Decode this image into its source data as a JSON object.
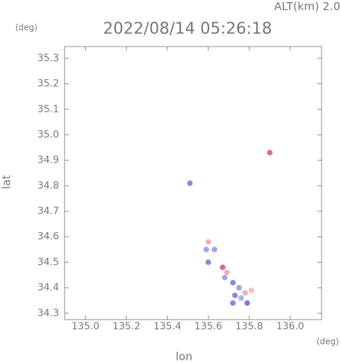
{
  "chart_data": {
    "type": "scatter",
    "title": "2022/08/14 05:26:18",
    "subtitle": "ALT(km) 2.0",
    "x_label": "lon",
    "y_label": "lat",
    "x_unit": "(deg)",
    "y_unit": "(deg)",
    "xlim": [
      134.898,
      136.153
    ],
    "ylim": [
      34.275,
      35.346
    ],
    "xticks": [
      {
        "value": 135,
        "label": "135.0"
      },
      135.2,
      135.4,
      135.6,
      135.8,
      {
        "value": 136,
        "label": "136.0"
      }
    ],
    "yticks": [
      34.3,
      34.4,
      34.5,
      34.6,
      34.7,
      34.8,
      34.9,
      {
        "value": 35,
        "label": "35.0"
      },
      35.1,
      35.2,
      35.3
    ],
    "x": [
      135.51,
      135.9,
      135.6,
      135.59,
      135.63,
      135.6,
      135.67,
      135.69,
      135.68,
      135.72,
      135.75,
      135.78,
      135.81,
      135.73,
      135.79,
      135.72,
      135.76
    ],
    "values": [
      34.81,
      34.93,
      34.58,
      34.55,
      34.55,
      34.5,
      34.48,
      34.46,
      34.44,
      34.42,
      34.4,
      34.38,
      34.39,
      34.37,
      34.34,
      34.34,
      34.36
    ],
    "colors": [
      "#6f74e6",
      "#e0506a",
      "#f2a0b0",
      "#8f94ee",
      "#8f94ee",
      "#6f74e6",
      "#e0506a",
      "#f2a0b0",
      "#8f94ee",
      "#6f74e6",
      "#8f94ee",
      "#f2a0b0",
      "#f2b0c0",
      "#6f74e6",
      "#5f64e0",
      "#6f74e6",
      "#9fa4f0"
    ]
  }
}
